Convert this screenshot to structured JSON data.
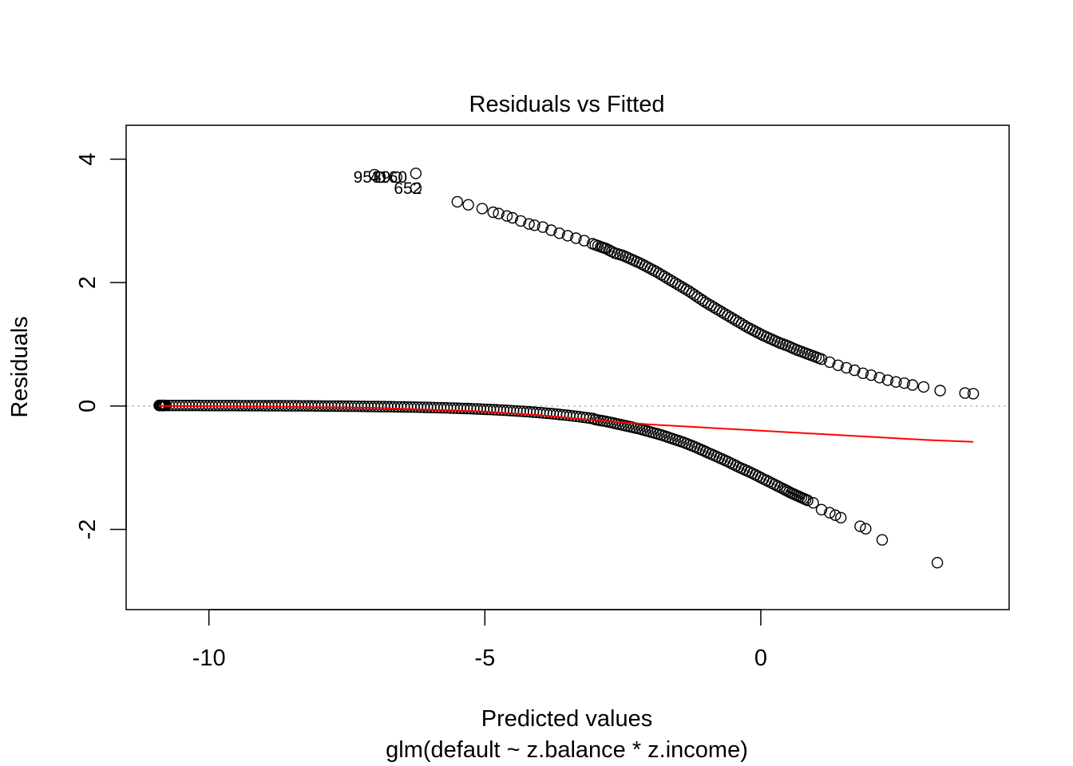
{
  "chart_data": {
    "type": "scatter",
    "title": "Residuals vs Fitted",
    "xlabel": "Predicted values",
    "subtitle": "glm(default ~ z.balance * z.income)",
    "ylabel": "Residuals",
    "xlim": [
      -11.5,
      4.5
    ],
    "ylim": [
      -3.3,
      4.55
    ],
    "x_ticks": [
      -10,
      -5,
      0
    ],
    "x_tick_labels": [
      "-10",
      "-5",
      "0"
    ],
    "y_ticks": [
      -2,
      0,
      2,
      4
    ],
    "y_tick_labels": [
      "-2",
      "0",
      "2",
      "4"
    ],
    "grid": false,
    "reference_line": {
      "y": 0,
      "style": "dotted",
      "color": "#bebebe"
    },
    "point_color": "#000000",
    "smoother_color": "#ff0000",
    "smoother": [
      [
        -10.9,
        0.0
      ],
      [
        -9.0,
        -0.01
      ],
      [
        -7.0,
        -0.03
      ],
      [
        -5.0,
        -0.09
      ],
      [
        -4.0,
        -0.15
      ],
      [
        -3.0,
        -0.23
      ],
      [
        -2.0,
        -0.3
      ],
      [
        -1.0,
        -0.35
      ],
      [
        0.0,
        -0.4
      ],
      [
        1.0,
        -0.45
      ],
      [
        2.0,
        -0.5
      ],
      [
        3.0,
        -0.55
      ],
      [
        3.85,
        -0.58
      ]
    ],
    "lower_band_ends": [
      -10.9,
      1.3
    ],
    "upper_band_start": -5.5,
    "upper_series": [
      [
        -5.5,
        3.31
      ],
      [
        -5.3,
        3.26
      ],
      [
        -5.05,
        3.2
      ],
      [
        -4.85,
        3.14
      ],
      [
        -4.75,
        3.12
      ],
      [
        -4.6,
        3.08
      ],
      [
        -4.5,
        3.05
      ],
      [
        -4.35,
        3.0
      ],
      [
        -4.2,
        2.95
      ],
      [
        -4.1,
        2.93
      ],
      [
        -3.95,
        2.9
      ],
      [
        -3.8,
        2.85
      ],
      [
        -3.65,
        2.8
      ],
      [
        -3.5,
        2.76
      ],
      [
        -3.35,
        2.72
      ],
      [
        -3.2,
        2.68
      ],
      [
        -3.05,
        2.63
      ],
      [
        -2.9,
        2.58
      ],
      [
        -2.8,
        2.55
      ],
      [
        -2.65,
        2.48
      ],
      [
        -2.5,
        2.44
      ],
      [
        -2.35,
        2.38
      ],
      [
        -2.2,
        2.32
      ],
      [
        -2.05,
        2.25
      ],
      [
        -1.9,
        2.18
      ],
      [
        -1.75,
        2.1
      ],
      [
        -1.6,
        2.02
      ],
      [
        -1.45,
        1.94
      ],
      [
        -1.3,
        1.86
      ],
      [
        -1.15,
        1.77
      ],
      [
        -1.0,
        1.68
      ],
      [
        -0.85,
        1.6
      ],
      [
        -0.7,
        1.52
      ],
      [
        -0.55,
        1.44
      ],
      [
        -0.4,
        1.36
      ],
      [
        -0.25,
        1.28
      ],
      [
        -0.1,
        1.21
      ],
      [
        0.05,
        1.14
      ],
      [
        0.2,
        1.08
      ],
      [
        0.35,
        1.02
      ],
      [
        0.5,
        0.97
      ],
      [
        0.65,
        0.91
      ],
      [
        0.8,
        0.86
      ],
      [
        0.95,
        0.81
      ],
      [
        1.1,
        0.76
      ],
      [
        1.25,
        0.71
      ],
      [
        1.4,
        0.66
      ],
      [
        1.55,
        0.62
      ],
      [
        1.7,
        0.58
      ],
      [
        1.85,
        0.53
      ],
      [
        2.0,
        0.5
      ],
      [
        2.15,
        0.46
      ],
      [
        2.3,
        0.42
      ],
      [
        2.45,
        0.39
      ],
      [
        2.6,
        0.37
      ],
      [
        2.75,
        0.34
      ],
      [
        2.95,
        0.31
      ],
      [
        3.25,
        0.25
      ],
      [
        3.7,
        0.21
      ],
      [
        3.85,
        0.2
      ]
    ],
    "lower_series": [
      [
        -3.0,
        -0.22
      ],
      [
        -2.8,
        -0.25
      ],
      [
        -2.6,
        -0.29
      ],
      [
        -2.4,
        -0.33
      ],
      [
        -2.2,
        -0.37
      ],
      [
        -2.0,
        -0.42
      ],
      [
        -1.8,
        -0.47
      ],
      [
        -1.6,
        -0.53
      ],
      [
        -1.4,
        -0.59
      ],
      [
        -1.2,
        -0.66
      ],
      [
        -1.0,
        -0.74
      ],
      [
        -0.8,
        -0.82
      ],
      [
        -0.6,
        -0.9
      ],
      [
        -0.4,
        -0.99
      ],
      [
        -0.2,
        -1.07
      ],
      [
        0.0,
        -1.16
      ],
      [
        0.2,
        -1.25
      ],
      [
        0.4,
        -1.34
      ],
      [
        0.55,
        -1.41
      ],
      [
        0.7,
        -1.47
      ],
      [
        0.85,
        -1.53
      ],
      [
        0.95,
        -1.57
      ],
      [
        1.1,
        -1.68
      ],
      [
        1.25,
        -1.73
      ],
      [
        1.35,
        -1.77
      ],
      [
        1.45,
        -1.81
      ],
      [
        1.8,
        -1.95
      ],
      [
        1.9,
        -1.99
      ],
      [
        2.2,
        -2.17
      ],
      [
        3.2,
        -2.54
      ]
    ],
    "outliers": [
      {
        "x": -7.0,
        "y": 3.75,
        "label": ""
      },
      {
        "x": -6.9,
        "y": 3.71,
        "label": "9539"
      },
      {
        "x": -6.6,
        "y": 3.71,
        "label": "4160"
      },
      {
        "x": -6.25,
        "y": 3.53,
        "label": "652"
      },
      {
        "x": -6.25,
        "y": 3.77,
        "label": ""
      }
    ]
  }
}
